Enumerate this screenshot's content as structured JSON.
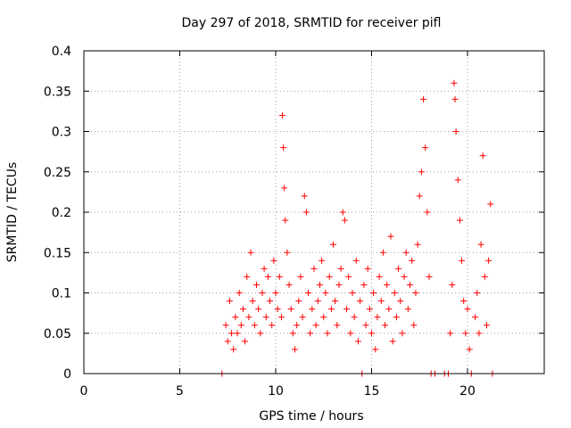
{
  "chart_data": {
    "type": "scatter",
    "title": "Day 297 of 2018, SRMTID for receiver pifl",
    "xlabel": "GPS time / hours",
    "ylabel": "SRMTID / TECUs",
    "xlim": [
      0,
      24
    ],
    "ylim": [
      0,
      0.4
    ],
    "xticks": [
      0,
      5,
      10,
      15,
      20
    ],
    "yticks": [
      0,
      0.05,
      0.1,
      0.15,
      0.2,
      0.25,
      0.3,
      0.35,
      0.4
    ],
    "xtick_labels": [
      "0",
      "5",
      "10",
      "15",
      "20"
    ],
    "ytick_labels": [
      "0",
      "0.05",
      "0.1",
      "0.15",
      "0.2",
      "0.25",
      "0.3",
      "0.35",
      "0.4"
    ],
    "grid": true,
    "grid_style": "dotted",
    "marker": "+",
    "marker_color": "#ff0000",
    "legend": "none",
    "series": [
      {
        "points": [
          [
            7.2,
            0.0
          ],
          [
            7.4,
            0.06
          ],
          [
            7.5,
            0.04
          ],
          [
            7.6,
            0.09
          ],
          [
            7.7,
            0.05
          ],
          [
            7.8,
            0.03
          ],
          [
            7.9,
            0.07
          ],
          [
            8.0,
            0.05
          ],
          [
            8.1,
            0.1
          ],
          [
            8.2,
            0.06
          ],
          [
            8.3,
            0.08
          ],
          [
            8.4,
            0.04
          ],
          [
            8.5,
            0.12
          ],
          [
            8.6,
            0.07
          ],
          [
            8.7,
            0.15
          ],
          [
            8.8,
            0.09
          ],
          [
            8.9,
            0.06
          ],
          [
            9.0,
            0.11
          ],
          [
            9.1,
            0.08
          ],
          [
            9.2,
            0.05
          ],
          [
            9.3,
            0.1
          ],
          [
            9.4,
            0.13
          ],
          [
            9.5,
            0.07
          ],
          [
            9.6,
            0.12
          ],
          [
            9.7,
            0.09
          ],
          [
            9.8,
            0.06
          ],
          [
            9.9,
            0.14
          ],
          [
            10.0,
            0.1
          ],
          [
            10.1,
            0.08
          ],
          [
            10.2,
            0.12
          ],
          [
            10.3,
            0.07
          ],
          [
            10.35,
            0.32
          ],
          [
            10.4,
            0.28
          ],
          [
            10.45,
            0.23
          ],
          [
            10.5,
            0.19
          ],
          [
            10.6,
            0.15
          ],
          [
            10.7,
            0.11
          ],
          [
            10.8,
            0.08
          ],
          [
            10.9,
            0.05
          ],
          [
            11.0,
            0.03
          ],
          [
            11.1,
            0.06
          ],
          [
            11.2,
            0.09
          ],
          [
            11.3,
            0.12
          ],
          [
            11.4,
            0.07
          ],
          [
            11.5,
            0.22
          ],
          [
            11.6,
            0.2
          ],
          [
            11.7,
            0.1
          ],
          [
            11.8,
            0.05
          ],
          [
            11.9,
            0.08
          ],
          [
            12.0,
            0.13
          ],
          [
            12.1,
            0.06
          ],
          [
            12.2,
            0.09
          ],
          [
            12.3,
            0.11
          ],
          [
            12.4,
            0.14
          ],
          [
            12.5,
            0.07
          ],
          [
            12.6,
            0.1
          ],
          [
            12.7,
            0.05
          ],
          [
            12.8,
            0.12
          ],
          [
            12.9,
            0.08
          ],
          [
            13.0,
            0.16
          ],
          [
            13.1,
            0.09
          ],
          [
            13.2,
            0.06
          ],
          [
            13.3,
            0.11
          ],
          [
            13.4,
            0.13
          ],
          [
            13.5,
            0.2
          ],
          [
            13.6,
            0.19
          ],
          [
            13.7,
            0.08
          ],
          [
            13.8,
            0.12
          ],
          [
            13.9,
            0.05
          ],
          [
            14.0,
            0.1
          ],
          [
            14.1,
            0.07
          ],
          [
            14.2,
            0.14
          ],
          [
            14.3,
            0.04
          ],
          [
            14.4,
            0.09
          ],
          [
            14.5,
            0.0
          ],
          [
            14.6,
            0.11
          ],
          [
            14.7,
            0.06
          ],
          [
            14.8,
            0.13
          ],
          [
            14.9,
            0.08
          ],
          [
            15.0,
            0.05
          ],
          [
            15.1,
            0.1
          ],
          [
            15.2,
            0.03
          ],
          [
            15.3,
            0.07
          ],
          [
            15.4,
            0.12
          ],
          [
            15.5,
            0.09
          ],
          [
            15.6,
            0.15
          ],
          [
            15.7,
            0.06
          ],
          [
            15.8,
            0.11
          ],
          [
            15.9,
            0.08
          ],
          [
            16.0,
            0.17
          ],
          [
            16.1,
            0.04
          ],
          [
            16.2,
            0.1
          ],
          [
            16.3,
            0.07
          ],
          [
            16.4,
            0.13
          ],
          [
            16.5,
            0.09
          ],
          [
            16.6,
            0.05
          ],
          [
            16.7,
            0.12
          ],
          [
            16.8,
            0.15
          ],
          [
            16.9,
            0.08
          ],
          [
            17.0,
            0.11
          ],
          [
            17.1,
            0.14
          ],
          [
            17.2,
            0.06
          ],
          [
            17.3,
            0.1
          ],
          [
            17.4,
            0.16
          ],
          [
            17.5,
            0.22
          ],
          [
            17.6,
            0.25
          ],
          [
            17.7,
            0.34
          ],
          [
            17.8,
            0.28
          ],
          [
            17.9,
            0.2
          ],
          [
            18.0,
            0.12
          ],
          [
            18.1,
            0.0
          ],
          [
            18.3,
            0.0
          ],
          [
            18.8,
            0.0
          ],
          [
            19.0,
            0.0
          ],
          [
            19.1,
            0.05
          ],
          [
            19.2,
            0.11
          ],
          [
            19.3,
            0.36
          ],
          [
            19.35,
            0.34
          ],
          [
            19.4,
            0.3
          ],
          [
            19.5,
            0.24
          ],
          [
            19.6,
            0.19
          ],
          [
            19.7,
            0.14
          ],
          [
            19.8,
            0.09
          ],
          [
            19.9,
            0.05
          ],
          [
            20.0,
            0.08
          ],
          [
            20.1,
            0.03
          ],
          [
            20.2,
            0.0
          ],
          [
            20.4,
            0.07
          ],
          [
            20.5,
            0.1
          ],
          [
            20.6,
            0.05
          ],
          [
            20.7,
            0.16
          ],
          [
            20.8,
            0.27
          ],
          [
            20.9,
            0.12
          ],
          [
            21.0,
            0.06
          ],
          [
            21.1,
            0.14
          ],
          [
            21.2,
            0.21
          ],
          [
            21.3,
            0.0
          ]
        ]
      }
    ]
  }
}
